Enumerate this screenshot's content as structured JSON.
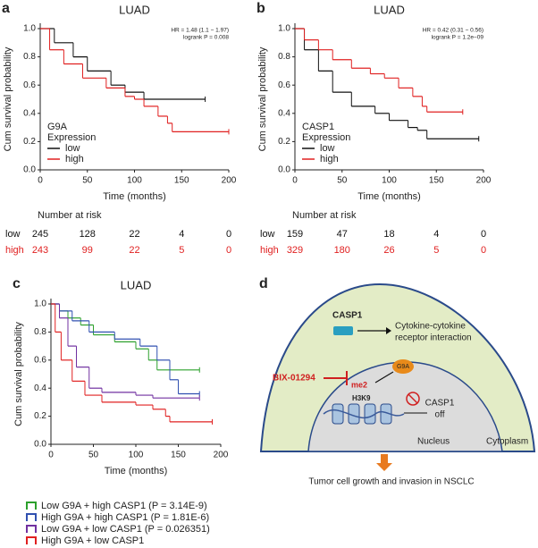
{
  "chart_data": [
    {
      "type": "step",
      "panel": "a",
      "title": "LUAD",
      "x_label": "Time (months)",
      "y_label": "Cum survival probability",
      "annotations": [
        "HR = 1.48 (1.1 − 1.97)",
        "logrank P = 0.008"
      ],
      "legend_title": [
        "G9A",
        "Expression"
      ],
      "legend": "lower left",
      "xlim": [
        0,
        200
      ],
      "xticks": [
        0,
        50,
        100,
        150,
        200
      ],
      "ylim": [
        0,
        1
      ],
      "yticks": [
        {
          "value": 0,
          "label": "0.0"
        },
        0.2,
        0.4,
        0.6,
        0.8,
        {
          "value": 1,
          "label": "1.0"
        }
      ],
      "series": [
        {
          "name": "low",
          "color": "#111111",
          "x": [
            0,
            15,
            35,
            50,
            75,
            90,
            110,
            175
          ],
          "values": [
            1.0,
            0.9,
            0.8,
            0.7,
            0.6,
            0.55,
            0.5,
            0.5
          ]
        },
        {
          "name": "high",
          "color": "#e02020",
          "x": [
            0,
            10,
            25,
            45,
            70,
            90,
            100,
            110,
            125,
            135,
            140,
            200
          ],
          "values": [
            1.0,
            0.85,
            0.75,
            0.65,
            0.58,
            0.52,
            0.5,
            0.45,
            0.38,
            0.33,
            0.27,
            0.27
          ]
        }
      ],
      "risk_table": {
        "title": "Number at risk",
        "rows": [
          {
            "name": "low",
            "values": [
              245,
              128,
              22,
              4,
              0
            ]
          },
          {
            "name": "high",
            "values": [
              243,
              99,
              22,
              5,
              0
            ]
          }
        ]
      }
    },
    {
      "type": "step",
      "panel": "b",
      "title": "LUAD",
      "x_label": "Time (months)",
      "y_label": "Cum survival probability",
      "annotations": [
        "HR = 0.42 (0.31 − 0.56)",
        "logrank P = 1.2e−09"
      ],
      "legend_title": [
        "CASP1",
        "Expression"
      ],
      "legend": "lower left",
      "xlim": [
        0,
        200
      ],
      "xticks": [
        0,
        50,
        100,
        150,
        200
      ],
      "ylim": [
        0,
        1
      ],
      "yticks": [
        {
          "value": 0,
          "label": "0.0"
        },
        0.2,
        0.4,
        0.6,
        0.8,
        {
          "value": 1,
          "label": "1.0"
        }
      ],
      "series": [
        {
          "name": "low",
          "color": "#111111",
          "x": [
            0,
            10,
            25,
            40,
            60,
            85,
            100,
            120,
            130,
            140,
            195
          ],
          "values": [
            1.0,
            0.85,
            0.7,
            0.55,
            0.45,
            0.4,
            0.35,
            0.3,
            0.28,
            0.22,
            0.22
          ]
        },
        {
          "name": "high",
          "color": "#e02020",
          "x": [
            0,
            10,
            25,
            40,
            60,
            80,
            95,
            110,
            125,
            135,
            140,
            178
          ],
          "values": [
            1.0,
            0.92,
            0.85,
            0.78,
            0.72,
            0.68,
            0.65,
            0.58,
            0.52,
            0.45,
            0.41,
            0.41
          ]
        }
      ],
      "risk_table": {
        "title": "Number at risk",
        "rows": [
          {
            "name": "low",
            "values": [
              159,
              47,
              18,
              4,
              0
            ]
          },
          {
            "name": "high",
            "values": [
              329,
              180,
              26,
              5,
              0
            ]
          }
        ]
      }
    },
    {
      "type": "step",
      "panel": "c",
      "title": "LUAD",
      "x_label": "Time (months)",
      "y_label": "Cum survival probability",
      "legend": "below",
      "xlim": [
        0,
        200
      ],
      "xticks": [
        0,
        50,
        100,
        150,
        200
      ],
      "ylim": [
        0,
        1
      ],
      "yticks": [
        {
          "value": 0,
          "label": "0.0"
        },
        0.2,
        0.4,
        0.6,
        0.8,
        {
          "value": 1,
          "label": "1.0"
        }
      ],
      "series": [
        {
          "name": "Low G9A + high CASP1 (P = 3.14E-9)",
          "color": "#2ca02c",
          "x": [
            0,
            10,
            20,
            35,
            50,
            75,
            100,
            115,
            125,
            175
          ],
          "values": [
            1.0,
            0.95,
            0.9,
            0.85,
            0.78,
            0.73,
            0.68,
            0.6,
            0.53,
            0.53
          ]
        },
        {
          "name": "High G9A + high CASP1 (P = 1.81E-6)",
          "color": "#3050b0",
          "x": [
            0,
            10,
            25,
            45,
            75,
            105,
            125,
            140,
            150,
            175
          ],
          "values": [
            1.0,
            0.95,
            0.88,
            0.8,
            0.75,
            0.7,
            0.6,
            0.46,
            0.36,
            0.36
          ]
        },
        {
          "name": "Low G9A + low CASP1 (P = 0.026351)",
          "color": "#7030a0",
          "x": [
            0,
            10,
            20,
            30,
            45,
            60,
            100,
            120,
            175
          ],
          "values": [
            1.0,
            0.9,
            0.7,
            0.55,
            0.4,
            0.37,
            0.35,
            0.33,
            0.33
          ]
        },
        {
          "name": "High G9A + low CASP1",
          "color": "#e02020",
          "x": [
            0,
            5,
            12,
            25,
            40,
            60,
            100,
            120,
            135,
            140,
            190
          ],
          "values": [
            1.0,
            0.8,
            0.6,
            0.45,
            0.35,
            0.3,
            0.28,
            0.25,
            0.2,
            0.16,
            0.16
          ]
        }
      ]
    }
  ],
  "diagram": {
    "panel": "d",
    "casp1": "CASP1",
    "pathway": [
      "Cytokine-cytokine",
      "receptor interaction"
    ],
    "inhibitor": "BIX-01294",
    "g9a": "G9A",
    "mark": "me2",
    "histone": "H3K9",
    "gene": [
      "CASP1",
      "off"
    ],
    "nucleus": "Nucleus",
    "cytoplasm": "Cytoplasm",
    "outcome": "Tumor cell growth and invasion in NSCLC"
  }
}
